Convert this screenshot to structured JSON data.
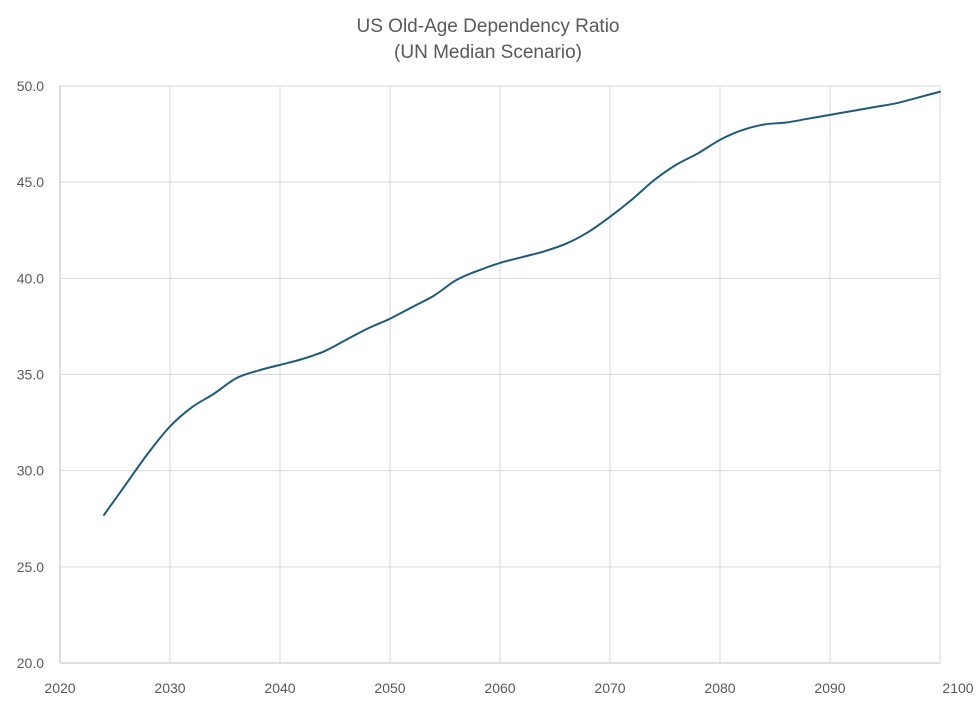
{
  "chart_data": {
    "type": "line",
    "title": "US Old-Age Dependency Ratio",
    "subtitle": "(UN Median Scenario)",
    "xlabel": "",
    "ylabel": "",
    "xlim": [
      2020,
      2100
    ],
    "ylim": [
      20.0,
      50.0
    ],
    "x_ticks": [
      2020,
      2030,
      2040,
      2050,
      2060,
      2070,
      2080,
      2090,
      2100
    ],
    "y_ticks": [
      20.0,
      25.0,
      30.0,
      35.0,
      40.0,
      45.0,
      50.0
    ],
    "x_tick_labels": [
      "2020",
      "2030",
      "2040",
      "2050",
      "2060",
      "2070",
      "2080",
      "2090",
      "2100"
    ],
    "y_tick_labels": [
      "20.0",
      "25.0",
      "30.0",
      "35.0",
      "40.0",
      "45.0",
      "50.0"
    ],
    "grid": true,
    "legend": "none",
    "series": [
      {
        "color": "#1f5a7a",
        "x": [
          2024,
          2026,
          2028,
          2030,
          2032,
          2034,
          2036,
          2038,
          2040,
          2042,
          2044,
          2046,
          2048,
          2050,
          2052,
          2054,
          2056,
          2058,
          2060,
          2062,
          2064,
          2066,
          2068,
          2070,
          2072,
          2074,
          2076,
          2078,
          2080,
          2082,
          2084,
          2086,
          2088,
          2090,
          2092,
          2094,
          2096,
          2098,
          2100
        ],
        "y": [
          27.7,
          29.3,
          30.9,
          32.3,
          33.3,
          34.0,
          34.8,
          35.2,
          35.5,
          35.8,
          36.2,
          36.8,
          37.4,
          37.9,
          38.5,
          39.1,
          39.9,
          40.4,
          40.8,
          41.1,
          41.4,
          41.8,
          42.4,
          43.2,
          44.1,
          45.1,
          45.9,
          46.5,
          47.2,
          47.7,
          48.0,
          48.1,
          48.3,
          48.5,
          48.7,
          48.9,
          49.1,
          49.4,
          49.7
        ]
      }
    ]
  }
}
